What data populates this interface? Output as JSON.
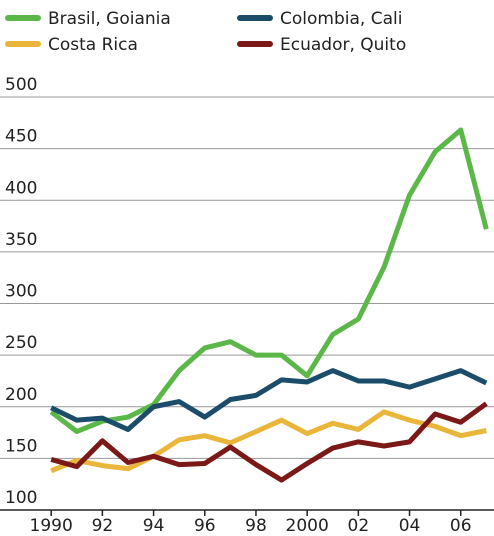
{
  "chart_data": {
    "type": "line",
    "x": [
      1990,
      1991,
      1992,
      1993,
      1994,
      1995,
      1996,
      1997,
      1998,
      1999,
      2000,
      2001,
      2002,
      2003,
      2004,
      2005,
      2006,
      2007
    ],
    "series": [
      {
        "name": "Brasil, Goiania",
        "color": "#5bb848",
        "values": [
          195,
          176,
          186,
          190,
          202,
          235,
          257,
          263,
          250,
          250,
          230,
          270,
          285,
          335,
          405,
          447,
          468,
          372
        ]
      },
      {
        "name": "Colombia, Cali",
        "color": "#1b4d6b",
        "values": [
          199,
          187,
          189,
          178,
          200,
          205,
          190,
          207,
          211,
          226,
          224,
          235,
          225,
          225,
          219,
          227,
          235,
          223
        ]
      },
      {
        "name": "Costa Rica",
        "color": "#e9b53a",
        "values": [
          138,
          148,
          143,
          140,
          152,
          168,
          172,
          165,
          176,
          187,
          174,
          184,
          178,
          195,
          187,
          181,
          172,
          177
        ]
      },
      {
        "name": "Ecuador, Quito",
        "color": "#7b1818",
        "values": [
          149,
          142,
          167,
          146,
          152,
          144,
          145,
          161,
          144,
          129,
          145,
          160,
          166,
          162,
          166,
          193,
          185,
          203
        ]
      }
    ],
    "xlim": [
      1988,
      2007.3
    ],
    "xticks": [
      1990,
      {
        "value": 1992,
        "label": "92"
      },
      {
        "value": 1994,
        "label": "94"
      },
      {
        "value": 1996,
        "label": "96"
      },
      {
        "value": 1998,
        "label": "98"
      },
      2000,
      {
        "value": 2002,
        "label": "02"
      },
      {
        "value": 2004,
        "label": "04"
      },
      {
        "value": 2006,
        "label": "06"
      }
    ],
    "ylim": [
      100,
      500
    ],
    "yticks": [
      100,
      150,
      200,
      250,
      300,
      350,
      400,
      450,
      500
    ],
    "grid": true
  }
}
